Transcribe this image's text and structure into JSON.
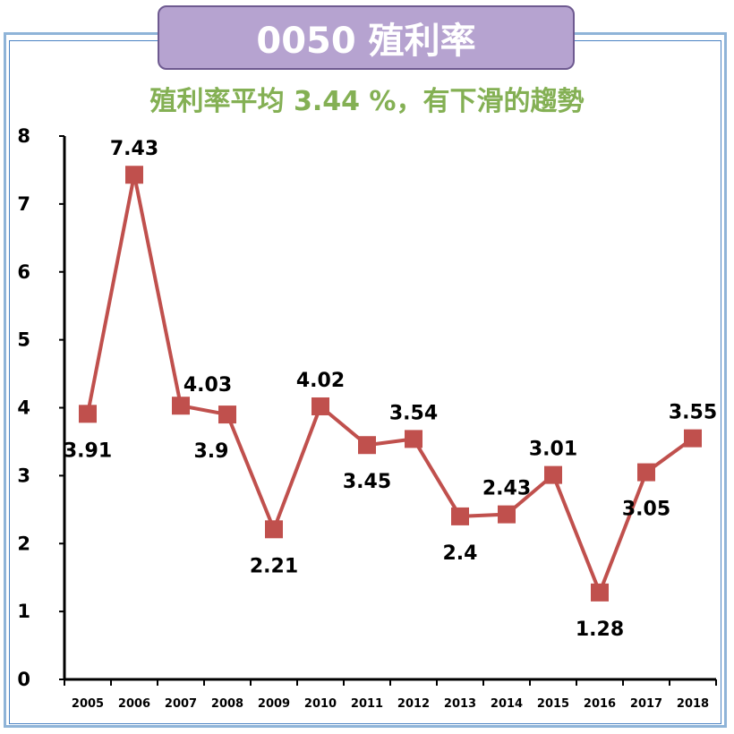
{
  "header": {
    "title": "0050 殖利率",
    "subtitle": "殖利率平均 3.44 %，有下滑的趨勢"
  },
  "colors": {
    "line": "#c0504d",
    "marker": "#c0504d",
    "title_bg": "#b6a3d0",
    "subtitle_text": "#84b054"
  },
  "chart_data": {
    "type": "line",
    "title": "0050 殖利率",
    "subtitle": "殖利率平均 3.44 %，有下滑的趨勢",
    "xlabel": "",
    "ylabel": "",
    "categories": [
      "2005",
      "2006",
      "2007",
      "2008",
      "2009",
      "2010",
      "2011",
      "2012",
      "2013",
      "2014",
      "2015",
      "2016",
      "2017",
      "2018"
    ],
    "series": [
      {
        "values": [
          3.91,
          7.43,
          4.03,
          3.9,
          2.21,
          4.02,
          3.45,
          3.54,
          2.4,
          2.43,
          3.01,
          1.28,
          3.05,
          3.55
        ],
        "labels": [
          "3.91",
          "7.43",
          "4.03",
          "3.9",
          "2.21",
          "4.02",
          "3.45",
          "3.54",
          "2.4",
          "2.43",
          "3.01",
          "1.28",
          "3.05",
          "3.55"
        ],
        "label_positions": [
          "below",
          "above",
          "above-right",
          "below",
          "below",
          "above",
          "below",
          "above",
          "below",
          "above",
          "above",
          "below",
          "below",
          "above"
        ]
      }
    ],
    "yticks": [
      "0",
      "1",
      "2",
      "3",
      "4",
      "5",
      "6",
      "7",
      "8"
    ],
    "ylim": [
      0,
      8
    ],
    "grid": false,
    "legend": "none"
  }
}
